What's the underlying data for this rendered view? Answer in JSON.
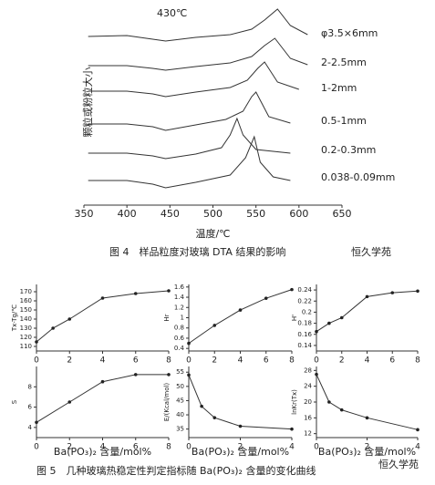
{
  "chart_data": [
    {
      "type": "line",
      "xlabel": "温度/℃",
      "ylabel": "颗粒或粉粒大小",
      "annotation": "430℃",
      "xlim": [
        350,
        650
      ],
      "xticks": [
        350,
        400,
        450,
        500,
        550,
        600,
        650
      ],
      "series": [
        {
          "name": "φ3.5×6mm",
          "x": [
            355,
            400,
            430,
            445,
            480,
            520,
            545,
            560,
            575,
            590,
            610
          ],
          "values": [
            0,
            1,
            -3,
            -5,
            -1,
            2,
            8,
            18,
            30,
            12,
            2
          ]
        },
        {
          "name": "2-2.5mm",
          "x": [
            355,
            400,
            430,
            445,
            480,
            520,
            545,
            560,
            572,
            590,
            610
          ],
          "values": [
            0,
            0,
            -3,
            -5,
            -1,
            3,
            10,
            22,
            30,
            8,
            1
          ]
        },
        {
          "name": "1-2mm",
          "x": [
            355,
            400,
            430,
            445,
            480,
            520,
            540,
            552,
            560,
            575,
            600
          ],
          "values": [
            0,
            0,
            -3,
            -6,
            -1,
            4,
            12,
            25,
            32,
            10,
            2
          ]
        },
        {
          "name": "0.5-1mm",
          "x": [
            355,
            400,
            430,
            445,
            480,
            515,
            535,
            545,
            550,
            565,
            590
          ],
          "values": [
            0,
            0,
            -3,
            -7,
            -1,
            5,
            14,
            30,
            35,
            8,
            1
          ]
        },
        {
          "name": "0.2-0.3mm",
          "x": [
            355,
            400,
            430,
            445,
            480,
            510,
            520,
            528,
            535,
            550,
            590
          ],
          "values": [
            0,
            0,
            -3,
            -6,
            -1,
            6,
            20,
            38,
            20,
            4,
            0
          ]
        },
        {
          "name": "0.038-0.09mm",
          "x": [
            355,
            400,
            430,
            445,
            480,
            520,
            538,
            548,
            555,
            570,
            590
          ],
          "values": [
            0,
            0,
            -4,
            -8,
            -2,
            6,
            25,
            48,
            20,
            4,
            0
          ]
        }
      ]
    },
    {
      "type": "line",
      "ylabel": "Tx-Tg/℃",
      "xlim": [
        0,
        8
      ],
      "xticks": [
        0,
        2,
        4,
        6,
        8
      ],
      "ylim": [
        105,
        178
      ],
      "yticks": [
        110,
        120,
        130,
        140,
        150,
        160,
        170
      ],
      "x": [
        0,
        1,
        2,
        4,
        6,
        8
      ],
      "values": [
        115,
        130,
        140,
        163,
        168,
        171
      ]
    },
    {
      "type": "line",
      "ylabel": "Hr",
      "xlim": [
        0,
        8
      ],
      "xticks": [
        0,
        2,
        4,
        6,
        8
      ],
      "ylim": [
        0.35,
        1.65
      ],
      "yticks": [
        0.4,
        0.6,
        0.8,
        1.0,
        1.2,
        1.4,
        1.6
      ],
      "x": [
        0,
        2,
        4,
        6,
        8
      ],
      "values": [
        0.5,
        0.85,
        1.15,
        1.38,
        1.55
      ]
    },
    {
      "type": "line",
      "ylabel": "H'",
      "xlim": [
        0,
        8
      ],
      "xticks": [
        0,
        2,
        4,
        6,
        8
      ],
      "ylim": [
        0.13,
        0.25
      ],
      "yticks": [
        0.14,
        0.16,
        0.18,
        0.2,
        0.22,
        0.24
      ],
      "x": [
        0,
        1,
        2,
        4,
        6,
        8
      ],
      "values": [
        0.165,
        0.18,
        0.19,
        0.228,
        0.235,
        0.238
      ]
    },
    {
      "type": "line",
      "ylabel": "S",
      "xlabel": "Ba(PO₃)₂ 含量/mol%",
      "xlim": [
        0,
        8
      ],
      "xticks": [
        0,
        2,
        4,
        6,
        8
      ],
      "ylim": [
        3,
        10
      ],
      "yticks": [
        4,
        6,
        8
      ],
      "x": [
        0,
        2,
        4,
        6,
        8
      ],
      "values": [
        4.5,
        6.5,
        8.5,
        9.2,
        9.2
      ]
    },
    {
      "type": "line",
      "ylabel": "E/(Kcal/mol)",
      "xlabel": "Ba(PO₃)₂ 含量/mol%",
      "xlim": [
        0,
        4
      ],
      "xticks": [
        0,
        2,
        4
      ],
      "ylim": [
        32,
        57
      ],
      "yticks": [
        35,
        40,
        45,
        50,
        55
      ],
      "x": [
        0,
        0.5,
        1,
        2,
        4
      ],
      "values": [
        54,
        43,
        39,
        36,
        35
      ]
    },
    {
      "type": "line",
      "ylabel": "lnKr(Tx)",
      "xlabel": "Ba(PO₃)₂ 含量/mol%",
      "xlim": [
        0,
        4
      ],
      "xticks": [
        0,
        2,
        4
      ],
      "ylim": [
        11,
        29
      ],
      "yticks": [
        12,
        16,
        20,
        24,
        28
      ],
      "x": [
        0,
        0.5,
        1,
        2,
        4
      ],
      "values": [
        27,
        20,
        18,
        16,
        13
      ]
    }
  ],
  "figure_captions": [
    "图 4　样品粒度对玻璃 DTA 结果的影响",
    "图 5　几种玻璃热稳定性判定指标随 Ba(PO₃)₂ 含量的变化曲线"
  ],
  "watermark": "恒久学苑"
}
